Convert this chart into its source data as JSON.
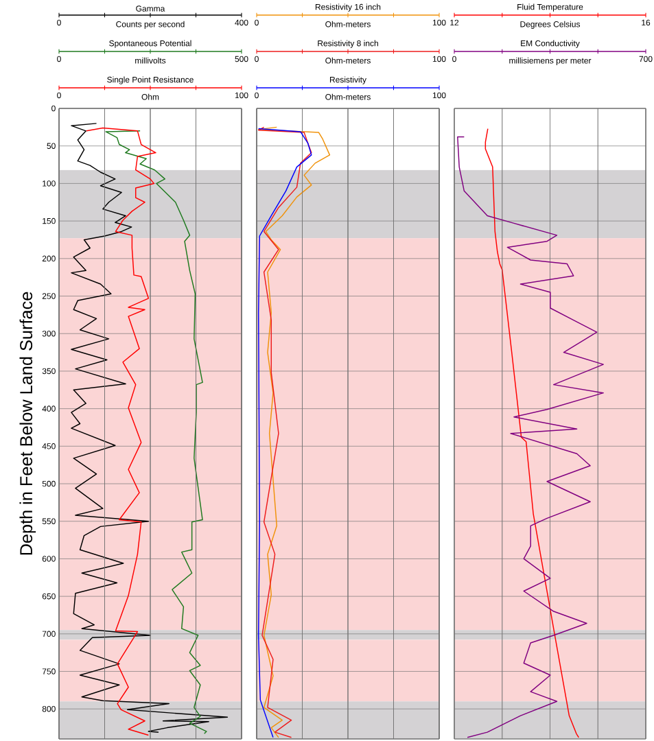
{
  "chart_data": [
    {
      "type": "line",
      "ylabel": "Depth in Feet Below Land Surface",
      "xlabel": "Counts per second",
      "xlim": [
        0,
        400
      ],
      "xticks": [
        0,
        {
          "value": 100,
          "label": null
        },
        {
          "value": 200,
          "label": null
        },
        {
          "value": 300,
          "label": null
        },
        400
      ],
      "ylim": [
        840,
        0
      ],
      "yticks": [
        0,
        50,
        100,
        150,
        200,
        250,
        300,
        350,
        400,
        450,
        500,
        550,
        600,
        650,
        700,
        750,
        800
      ],
      "grid": true,
      "bands": [
        {
          "axis": "y",
          "from": 82,
          "to": 173,
          "color": "#d4d2d4"
        },
        {
          "axis": "y",
          "from": 173,
          "to": 695,
          "color": "#fbd5d5"
        },
        {
          "axis": "y",
          "from": 695,
          "to": 708,
          "color": "#d4d2d4"
        },
        {
          "axis": "y",
          "from": 708,
          "to": 790,
          "color": "#fbd5d5"
        },
        {
          "axis": "y",
          "from": 790,
          "to": 840,
          "color": "#d4d2d4"
        }
      ],
      "series": [
        {
          "name": "Gamma",
          "color": "#000000",
          "x": [
            82,
            27,
            59,
            41,
            55,
            41,
            68,
            91,
            123,
            91,
            137,
            109,
            96,
            146,
            123,
            159,
            137,
            100,
            55,
            68,
            32,
            59,
            27,
            91,
            114,
            41,
            32,
            82,
            46,
            109,
            27,
            105,
            36,
            146,
            32,
            59,
            27,
            46,
            27,
            123,
            32,
            82,
            36,
            96,
            36,
            196,
            91,
            55,
            46,
            141,
            50,
            127,
            36,
            32,
            77,
            50,
            200,
            73,
            46,
            132,
            46,
            132,
            50,
            96,
            241,
            150,
            369,
            228,
            328,
            237,
            196,
            218
          ],
          "values": [
            20,
            23,
            30,
            42,
            55,
            70,
            76,
            85,
            94,
            103,
            112,
            125,
            134,
            143,
            152,
            158,
            164,
            170,
            175,
            186,
            198,
            216,
            219,
            234,
            247,
            256,
            268,
            280,
            295,
            307,
            321,
            335,
            347,
            367,
            375,
            393,
            405,
            420,
            426,
            449,
            466,
            487,
            506,
            533,
            542,
            550,
            557,
            569,
            588,
            606,
            619,
            632,
            646,
            673,
            688,
            693,
            702,
            705,
            722,
            740,
            755,
            768,
            784,
            789,
            793,
            801,
            811,
            816,
            817,
            825,
            830,
            831
          ]
        }
      ]
    },
    {
      "type": "line",
      "xlabel": "millivolts",
      "tick_labels": "x",
      "grid": "x",
      "xlim": [
        0,
        500
      ],
      "xticks": [
        0,
        {
          "value": 125,
          "label": null
        },
        {
          "value": 250,
          "label": null
        },
        {
          "value": 375,
          "label": null
        },
        500
      ],
      "ylim": [
        840,
        0
      ],
      "series": [
        {
          "name": "Spontaneous Potential",
          "color": "#1f7a1f",
          "x": [
            222,
            128,
            159,
            165,
            193,
            182,
            239,
            222,
            262,
            290,
            267,
            319,
            341,
            358,
            344,
            358,
            373,
            370,
            393,
            376,
            376,
            370,
            393,
            364,
            364,
            336,
            364,
            310,
            341,
            336,
            381,
            358,
            387,
            358,
            387,
            370,
            387,
            358,
            404,
            398
          ],
          "values": [
            30,
            31,
            39,
            48,
            55,
            59,
            67,
            74,
            82,
            94,
            100,
            125,
            149,
            169,
            177,
            216,
            247,
            307,
            365,
            368,
            405,
            466,
            548,
            551,
            588,
            591,
            619,
            641,
            664,
            693,
            702,
            725,
            742,
            749,
            768,
            798,
            810,
            819,
            830,
            833
          ]
        }
      ]
    },
    {
      "type": "line",
      "xlabel": "Ohm",
      "tick_labels": "x",
      "grid": "x",
      "xlim": [
        0,
        100
      ],
      "xticks": [
        0,
        {
          "value": 25,
          "label": null
        },
        {
          "value": 50,
          "label": null
        },
        {
          "value": 75,
          "label": null
        },
        100
      ],
      "ylim": [
        840,
        0
      ],
      "series": [
        {
          "name": "Single Point Resistance",
          "color": "#ff0000",
          "x": [
            15,
            24,
            43,
            45,
            53,
            43,
            42,
            50,
            52,
            42,
            42,
            47,
            40,
            35,
            31,
            40,
            40,
            41,
            45,
            49,
            38,
            47,
            38,
            44,
            35,
            42,
            38,
            45,
            38,
            44,
            33,
            45,
            43,
            38,
            31,
            43,
            32,
            38,
            32,
            34,
            47,
            38,
            49
          ],
          "values": [
            30,
            26,
            30,
            48,
            59,
            64,
            82,
            94,
            100,
            106,
            119,
            125,
            137,
            149,
            164,
            169,
            186,
            222,
            224,
            253,
            265,
            268,
            277,
            320,
            338,
            368,
            399,
            445,
            481,
            512,
            548,
            551,
            594,
            649,
            696,
            697,
            740,
            771,
            793,
            801,
            816,
            827,
            835
          ]
        }
      ]
    },
    {
      "type": "line",
      "xlabel": "Ohm-meters",
      "tick_labels": "x",
      "xlim": [
        0,
        100
      ],
      "xticks": [
        0,
        {
          "value": 25,
          "label": null
        },
        {
          "value": 50,
          "label": null
        },
        {
          "value": 75,
          "label": null
        },
        100
      ],
      "ylim": [
        840,
        0
      ],
      "yticks": [
        0,
        50,
        100,
        150,
        200,
        250,
        300,
        350,
        400,
        450,
        500,
        550,
        600,
        650,
        700,
        750,
        800
      ],
      "grid": true,
      "bands": [
        {
          "axis": "y",
          "from": 82,
          "to": 173,
          "color": "#d4d2d4"
        },
        {
          "axis": "y",
          "from": 173,
          "to": 695,
          "color": "#fbd5d5"
        },
        {
          "axis": "y",
          "from": 695,
          "to": 708,
          "color": "#d4d2d4"
        },
        {
          "axis": "y",
          "from": 708,
          "to": 790,
          "color": "#fbd5d5"
        },
        {
          "axis": "y",
          "from": 790,
          "to": 840,
          "color": "#d4d2d4"
        }
      ],
      "series": [
        {
          "name": "Resistivity 16 inch",
          "color": "#f0920a",
          "x": [
            11,
            1,
            34,
            36,
            40,
            32,
            26,
            30,
            22,
            14,
            5,
            8,
            13,
            6,
            8,
            6,
            9,
            7,
            11,
            6,
            8,
            4,
            9,
            4,
            14,
            8,
            12
          ],
          "values": [
            25,
            28,
            32,
            40,
            62,
            73,
            89,
            102,
            118,
            143,
            164,
            175,
            188,
            218,
            272,
            325,
            379,
            433,
            556,
            594,
            648,
            702,
            756,
            798,
            815,
            825,
            838
          ]
        }
      ]
    },
    {
      "type": "line",
      "xlabel": "Ohm-meters",
      "tick_labels": "x",
      "xlim": [
        0,
        100
      ],
      "xticks": [
        0,
        {
          "value": 25,
          "label": null
        },
        {
          "value": 50,
          "label": null
        },
        {
          "value": 75,
          "label": null
        },
        100
      ],
      "ylim": [
        840,
        0
      ],
      "grid": "x",
      "series": [
        {
          "name": "Resistivity 8 inch",
          "color": "#ee1c1c",
          "x": [
            4,
            1,
            26,
            28,
            30,
            24,
            22,
            12,
            4,
            12,
            4,
            8,
            8,
            12,
            4,
            10,
            3,
            9,
            6,
            19,
            10,
            19
          ],
          "values": [
            25,
            29,
            32,
            46,
            59,
            73,
            105,
            132,
            164,
            188,
            218,
            282,
            352,
            433,
            551,
            594,
            702,
            734,
            798,
            815,
            831,
            838
          ]
        }
      ]
    },
    {
      "type": "line",
      "xlabel": "Ohm-meters",
      "tick_labels": "x",
      "xlim": [
        0,
        100
      ],
      "xticks": [
        0,
        {
          "value": 25,
          "label": null
        },
        {
          "value": 50,
          "label": null
        },
        {
          "value": 75,
          "label": null
        },
        100
      ],
      "ylim": [
        840,
        0
      ],
      "grid": "x",
      "series": [
        {
          "name": "Resistivity",
          "color": "#0000ff",
          "x": [
            1,
            24,
            28,
            30,
            22,
            16,
            8,
            1.6,
            1,
            1.6,
            1,
            2,
            9
          ],
          "values": [
            27,
            31,
            46,
            62,
            78,
            110,
            143,
            170,
            272,
            551,
            702,
            788,
            838
          ]
        }
      ]
    },
    {
      "type": "line",
      "xlabel": "Degrees Celsius",
      "tick_labels": "x",
      "xlim": [
        12,
        16
      ],
      "xticks": [
        12,
        {
          "value": 13,
          "label": null
        },
        {
          "value": 14,
          "label": null
        },
        {
          "value": 15,
          "label": null
        },
        16
      ],
      "ylim": [
        840,
        0
      ],
      "yticks": [
        0,
        50,
        100,
        150,
        200,
        250,
        300,
        350,
        400,
        450,
        500,
        550,
        600,
        650,
        700,
        750,
        800
      ],
      "grid": true,
      "bands": [
        {
          "axis": "y",
          "from": 82,
          "to": 173,
          "color": "#d4d2d4"
        },
        {
          "axis": "y",
          "from": 173,
          "to": 695,
          "color": "#fbd5d5"
        },
        {
          "axis": "y",
          "from": 695,
          "to": 708,
          "color": "#d4d2d4"
        },
        {
          "axis": "y",
          "from": 708,
          "to": 790,
          "color": "#fbd5d5"
        },
        {
          "axis": "y",
          "from": 790,
          "to": 840,
          "color": "#d4d2d4"
        }
      ],
      "series": [
        {
          "name": "Fluid Temperature",
          "color": "#ff0000",
          "x": [
            12.7,
            12.65,
            12.65,
            12.8,
            12.85,
            12.9,
            12.95,
            13,
            13.2,
            13.4,
            13.5,
            13.65,
            14.1,
            14.4,
            14.55,
            14.6
          ],
          "values": [
            27,
            45,
            54,
            78,
            164,
            191,
            207,
            215,
            325,
            438,
            444,
            540,
            702,
            809,
            833,
            838
          ]
        }
      ]
    },
    {
      "type": "line",
      "xlabel": "millisiemens per meter",
      "tick_labels": "x",
      "grid": "x",
      "xlim": [
        0,
        700
      ],
      "xticks": [
        0,
        {
          "value": 175,
          "label": null
        },
        {
          "value": 350,
          "label": null
        },
        {
          "value": 525,
          "label": null
        },
        700
      ],
      "ylim": [
        840,
        0
      ],
      "series": [
        {
          "name": "EM Conductivity",
          "color": "#800080",
          "x": [
            36,
            12,
            18,
            36,
            121,
            218,
            375,
            339,
            194,
            279,
            412,
            436,
            242,
            351,
            351,
            436,
            521,
            400,
            545,
            363,
            545,
            339,
            218,
            448,
            206,
            448,
            497,
            339,
            497,
            339,
            279,
            279,
            254,
            351,
            254,
            363,
            484,
            363,
            279,
            254,
            351,
            279,
            375,
            242,
            121,
            48
          ],
          "values": [
            38,
            38,
            78,
            110,
            143,
            153,
            169,
            177,
            185,
            202,
            207,
            223,
            234,
            245,
            266,
            282,
            298,
            325,
            341,
            368,
            379,
            401,
            411,
            427,
            433,
            460,
            476,
            497,
            524,
            546,
            556,
            583,
            600,
            626,
            643,
            670,
            686,
            702,
            712,
            739,
            755,
            777,
            790,
            809,
            831,
            838
          ]
        }
      ]
    }
  ]
}
